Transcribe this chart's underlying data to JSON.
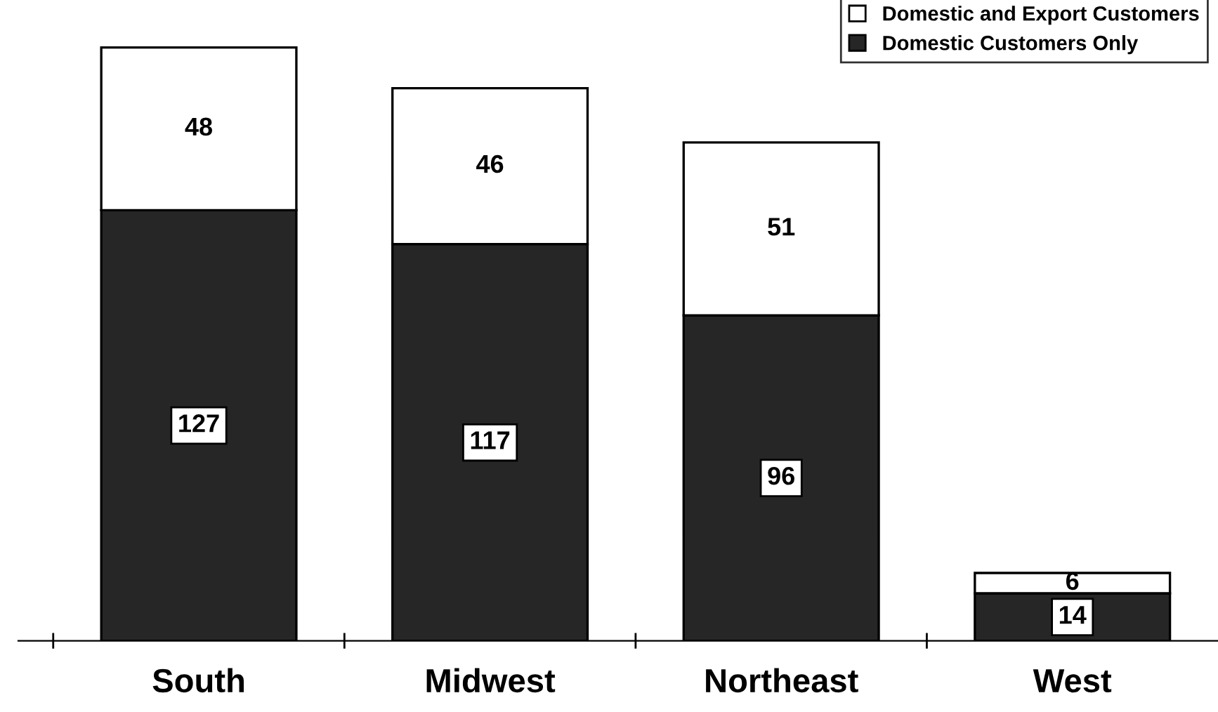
{
  "chart_data": {
    "type": "bar",
    "stacked": true,
    "data_labels": true,
    "legend": "top right",
    "grid": false,
    "tick_labels": "x",
    "categories": [
      "South",
      "Midwest",
      "Northeast",
      "West"
    ],
    "series": [
      {
        "name": "Domestic Customers Only",
        "color": "#262626",
        "values": [
          127,
          117,
          96,
          14
        ]
      },
      {
        "name": "Domestic and Export Customers",
        "color": "#ffffff",
        "values": [
          48,
          46,
          51,
          6
        ]
      }
    ]
  }
}
